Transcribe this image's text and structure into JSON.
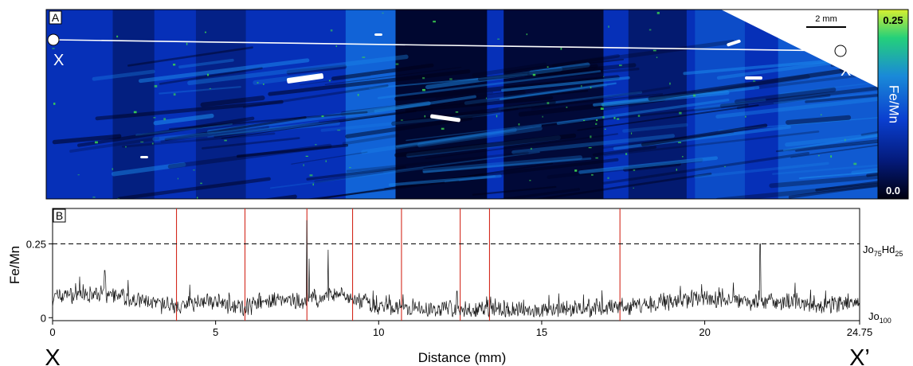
{
  "panel_a": {
    "label": "A",
    "scale_bar_label": "2 mm",
    "colorbar": {
      "title": "Fe/Mn",
      "max_label": "0.25",
      "min_label": "0.0",
      "colors": [
        "#000010",
        "#041a7a",
        "#0a3fd0",
        "#1a8ad8",
        "#24d07a",
        "#d8f030"
      ]
    },
    "profile_start_label": "X",
    "profile_end_label": "X’",
    "map_colors": {
      "dark": "#000018",
      "base": "#0630b8",
      "bright": "#1c8ef0",
      "green": "#3cd650",
      "inclusion": "#ffffff"
    }
  },
  "panel_b": {
    "label": "B",
    "ylabel": "Fe/Mn",
    "xlabel": "Distance (mm)",
    "x_start_letter": "X",
    "x_end_letter": "X’",
    "ref_upper": {
      "base": "Jo",
      "sub1": "75",
      "mid": "Hd",
      "sub2": "25"
    },
    "ref_lower": {
      "base": "Jo",
      "sub1": "100"
    }
  },
  "chart_data": {
    "type": "line",
    "xlabel": "Distance (mm)",
    "ylabel": "Fe/Mn",
    "xlim": [
      0,
      24.75
    ],
    "ylim": [
      -0.01,
      0.37
    ],
    "x_ticks": [
      0,
      5,
      10,
      15,
      20,
      24.75
    ],
    "x_tick_labels": [
      "0",
      "5",
      "10",
      "15",
      "20",
      "24.75"
    ],
    "y_ticks": [
      0,
      0.25
    ],
    "y_tick_labels": [
      "0",
      "0.25"
    ],
    "reference_line_y": 0.25,
    "boundaries_x": [
      3.8,
      5.9,
      7.8,
      9.2,
      10.7,
      12.5,
      13.4,
      17.4
    ],
    "profile_levels": [
      {
        "x": 0,
        "y": 0.07
      },
      {
        "x": 1.5,
        "y": 0.08
      },
      {
        "x": 2.5,
        "y": 0.06
      },
      {
        "x": 3.8,
        "y": 0.035
      },
      {
        "x": 4.5,
        "y": 0.06
      },
      {
        "x": 5.9,
        "y": 0.035
      },
      {
        "x": 6.5,
        "y": 0.06
      },
      {
        "x": 7.8,
        "y": 0.05
      },
      {
        "x": 8.6,
        "y": 0.08
      },
      {
        "x": 9.2,
        "y": 0.06
      },
      {
        "x": 10.0,
        "y": 0.04
      },
      {
        "x": 10.7,
        "y": 0.03
      },
      {
        "x": 12.5,
        "y": 0.028
      },
      {
        "x": 13.4,
        "y": 0.03
      },
      {
        "x": 15.0,
        "y": 0.025
      },
      {
        "x": 17.4,
        "y": 0.035
      },
      {
        "x": 18.5,
        "y": 0.05
      },
      {
        "x": 20.0,
        "y": 0.065
      },
      {
        "x": 21.0,
        "y": 0.06
      },
      {
        "x": 22.5,
        "y": 0.05
      },
      {
        "x": 24.75,
        "y": 0.045
      }
    ],
    "spikes": [
      {
        "x": 7.8,
        "y": 0.33
      },
      {
        "x": 7.87,
        "y": 0.2
      },
      {
        "x": 8.45,
        "y": 0.23
      },
      {
        "x": 21.7,
        "y": 0.25
      },
      {
        "x": 1.6,
        "y": 0.16
      },
      {
        "x": 12.4,
        "y": 0.09
      }
    ],
    "noise_amplitude": 0.045
  }
}
